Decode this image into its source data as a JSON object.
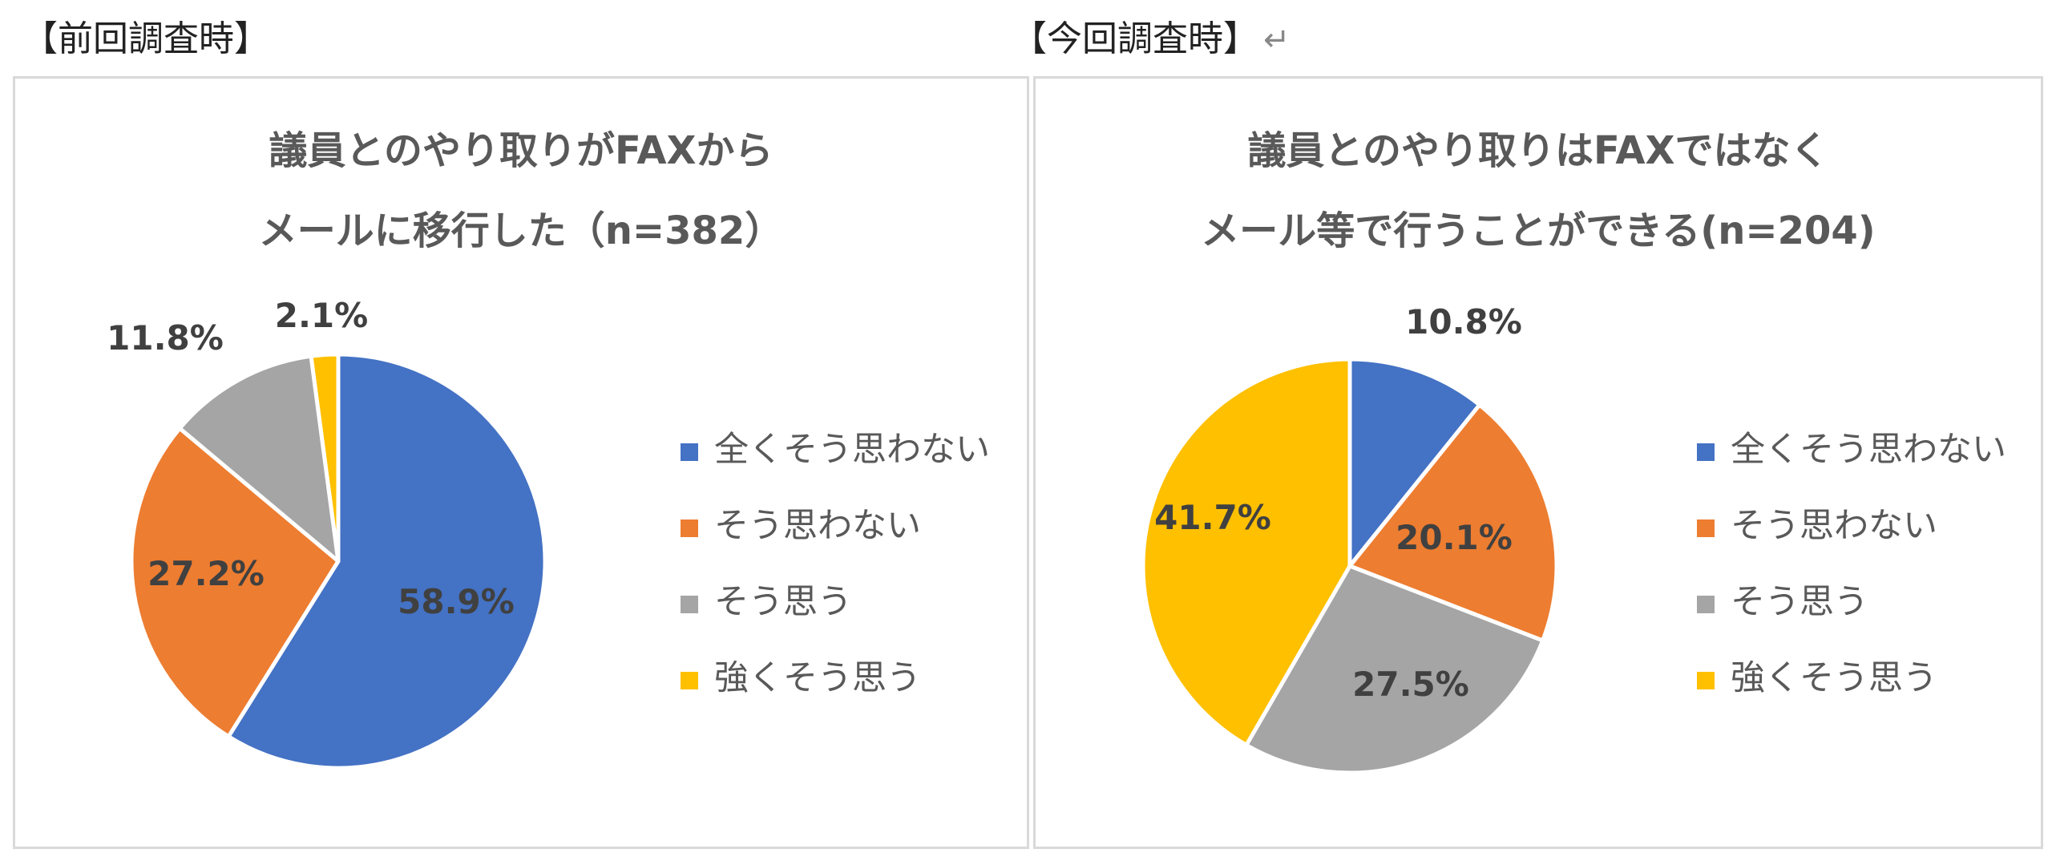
{
  "headings": {
    "previous": "【前回調査時】",
    "current": "【今回調査時】",
    "return_mark": "↵"
  },
  "legend_labels": [
    "全くそう思わない",
    "そう思わない",
    "そう思う",
    "強くそう思う"
  ],
  "colors": [
    "#4472C4",
    "#ED7D31",
    "#A5A5A5",
    "#FFC000"
  ],
  "chart_data": [
    {
      "type": "pie",
      "title": "議員とのやり取りがFAXから メール に移行した（n=382）",
      "title_lines": [
        "議員とのやり取りがFAXから",
        "メールに移行した（n=382）"
      ],
      "categories": [
        "全くそう思わない",
        "そう思わない",
        "そう思う",
        "強くそう思う"
      ],
      "values": [
        58.9,
        27.2,
        11.8,
        2.1
      ],
      "data_labels": [
        "58.9%",
        "27.2%",
        "11.8%",
        "2.1%"
      ],
      "legend_position": "right"
    },
    {
      "type": "pie",
      "title": "議員とのやり取りはFAXではなく メール等で行うことができる(n=204)",
      "title_lines": [
        "議員とのやり取りはFAXではなく",
        "メール等で行うことができる(n=204)"
      ],
      "categories": [
        "全くそう思わない",
        "そう思わない",
        "そう思う",
        "強くそう思う"
      ],
      "values": [
        10.8,
        20.1,
        27.5,
        41.7
      ],
      "data_labels": [
        "10.8%",
        "20.1%",
        "27.5%",
        "41.7%"
      ],
      "legend_position": "right"
    }
  ]
}
